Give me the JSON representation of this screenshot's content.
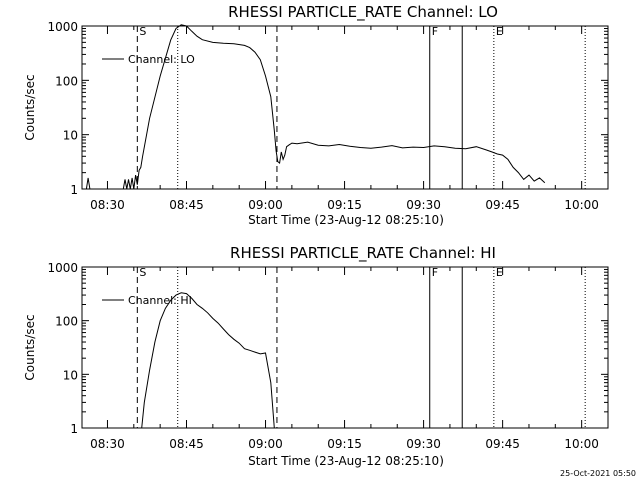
{
  "footer_timestamp": "25-Oct-2021 05:50",
  "chart_data": [
    {
      "type": "line",
      "title": "RHESSI PARTICLE_RATE Channel: LO",
      "xlabel": "Start Time (23-Aug-12 08:25:10)",
      "ylabel": "Counts/sec",
      "y_scale": "log",
      "ylim": [
        1,
        1000
      ],
      "xlim": [
        "08:25:10",
        "10:05"
      ],
      "x_ticks": [
        "08:30",
        "08:45",
        "09:00",
        "09:15",
        "09:30",
        "09:45",
        "10:00"
      ],
      "y_ticks": [
        "1",
        "10",
        "100",
        "1000"
      ],
      "legend": {
        "placement": "top-left",
        "entries": [
          "Channel: LO"
        ]
      },
      "markers": [
        {
          "time": "08:35:40",
          "style": "dashed",
          "label": "S"
        },
        {
          "time": "08:43:20",
          "style": "dotted",
          "label": ""
        },
        {
          "time": "09:02:10",
          "style": "dashed",
          "label": ""
        },
        {
          "time": "09:31:10",
          "style": "solid",
          "label": "F"
        },
        {
          "time": "09:37:20",
          "style": "solid",
          "label": ""
        },
        {
          "time": "09:43:20",
          "style": "dotted",
          "label": "E"
        },
        {
          "time": "10:00:40",
          "style": "dotted",
          "label": ""
        }
      ],
      "series": [
        {
          "name": "Channel: LO",
          "x": [
            "08:26:00",
            "08:26:20",
            "08:26:40",
            "08:33:00",
            "08:33:20",
            "08:33:40",
            "08:34:00",
            "08:34:20",
            "08:34:40",
            "08:35:00",
            "08:35:20",
            "08:35:40",
            "08:36:00",
            "08:36:20",
            "08:36:40",
            "08:38:00",
            "08:40:00",
            "08:42:00",
            "08:43:00",
            "08:44:00",
            "08:45:00",
            "08:46:00",
            "08:47:00",
            "08:48:00",
            "08:50:00",
            "08:52:00",
            "08:54:00",
            "08:56:00",
            "08:57:00",
            "08:58:00",
            "08:59:00",
            "09:00:00",
            "09:01:00",
            "09:01:40",
            "09:02:00",
            "09:02:20",
            "09:02:40",
            "09:03:00",
            "09:03:20",
            "09:03:40",
            "09:04:00",
            "09:04:30",
            "09:05:00",
            "09:06:00",
            "09:08:00",
            "09:10:00",
            "09:12:00",
            "09:14:00",
            "09:16:00",
            "09:18:00",
            "09:20:00",
            "09:22:00",
            "09:24:00",
            "09:26:00",
            "09:28:00",
            "09:30:00",
            "09:32:00",
            "09:34:00",
            "09:36:00",
            "09:38:00",
            "09:40:00",
            "09:42:00",
            "09:43:00",
            "09:44:00",
            "09:45:00",
            "09:46:00",
            "09:47:00",
            "09:48:00",
            "09:49:00",
            "09:50:00",
            "09:51:00",
            "09:52:00",
            "09:53:00"
          ],
          "y": [
            1,
            1.6,
            1,
            1,
            1.5,
            1,
            1.5,
            1,
            1.6,
            1,
            1.8,
            1.2,
            2.2,
            2.5,
            4,
            20,
            120,
            550,
            900,
            1050,
            1000,
            800,
            650,
            560,
            500,
            480,
            470,
            440,
            400,
            330,
            240,
            120,
            50,
            12,
            5,
            3.2,
            3,
            4.8,
            3.5,
            4.2,
            6,
            6.5,
            7,
            6.8,
            7.3,
            6.4,
            6.2,
            6.6,
            6.1,
            5.8,
            5.6,
            5.9,
            6.3,
            5.7,
            5.9,
            5.8,
            6.2,
            6,
            5.6,
            5.5,
            6,
            5.2,
            4.8,
            4.4,
            4.2,
            3.5,
            2.5,
            2,
            1.5,
            1.8,
            1.4,
            1.6,
            1.3
          ]
        }
      ]
    },
    {
      "type": "line",
      "title": "RHESSI PARTICLE_RATE Channel: HI",
      "xlabel": "Start Time (23-Aug-12 08:25:10)",
      "ylabel": "Counts/sec",
      "y_scale": "log",
      "ylim": [
        1,
        1000
      ],
      "xlim": [
        "08:25:10",
        "10:05"
      ],
      "x_ticks": [
        "08:30",
        "08:45",
        "09:00",
        "09:15",
        "09:30",
        "09:45",
        "10:00"
      ],
      "y_ticks": [
        "1",
        "10",
        "100",
        "1000"
      ],
      "legend": {
        "placement": "top-left",
        "entries": [
          "Channel: HI"
        ]
      },
      "markers": [
        {
          "time": "08:35:40",
          "style": "dashed",
          "label": "S"
        },
        {
          "time": "08:43:20",
          "style": "dotted",
          "label": ""
        },
        {
          "time": "09:02:10",
          "style": "dashed",
          "label": ""
        },
        {
          "time": "09:31:10",
          "style": "solid",
          "label": "F"
        },
        {
          "time": "09:37:20",
          "style": "solid",
          "label": ""
        },
        {
          "time": "09:43:20",
          "style": "dotted",
          "label": "E"
        },
        {
          "time": "10:00:40",
          "style": "dotted",
          "label": ""
        }
      ],
      "series": [
        {
          "name": "Channel: HI",
          "x": [
            "08:36:30",
            "08:37:00",
            "08:38:00",
            "08:39:00",
            "08:40:00",
            "08:41:00",
            "08:42:00",
            "08:43:00",
            "08:44:00",
            "08:45:00",
            "08:46:00",
            "08:47:00",
            "08:48:00",
            "08:49:00",
            "08:50:00",
            "08:51:00",
            "08:52:00",
            "08:53:00",
            "08:54:00",
            "08:55:00",
            "08:56:00",
            "08:57:00",
            "08:58:00",
            "08:59:00",
            "09:00:00",
            "09:01:00",
            "09:01:40"
          ],
          "y": [
            1,
            3,
            12,
            40,
            100,
            170,
            240,
            300,
            330,
            320,
            260,
            200,
            170,
            140,
            110,
            90,
            70,
            55,
            45,
            38,
            30,
            28,
            26,
            24,
            25,
            7,
            1
          ]
        }
      ]
    }
  ]
}
